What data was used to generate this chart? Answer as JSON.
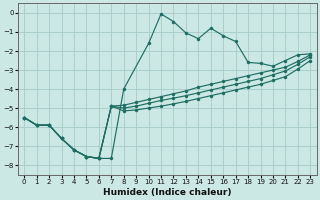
{
  "xlabel": "Humidex (Indice chaleur)",
  "bg_color": "#cce8e4",
  "grid_color": "#aacfcb",
  "line_color": "#1e6e64",
  "xlim": [
    -0.5,
    23.5
  ],
  "ylim": [
    -8.5,
    0.5
  ],
  "xticks": [
    0,
    1,
    2,
    3,
    4,
    5,
    6,
    7,
    8,
    9,
    10,
    11,
    12,
    13,
    14,
    15,
    16,
    17,
    18,
    19,
    20,
    21,
    22,
    23
  ],
  "yticks": [
    0,
    -1,
    -2,
    -3,
    -4,
    -5,
    -6,
    -7,
    -8
  ],
  "main_x": [
    0,
    1,
    2,
    3,
    4,
    5,
    6,
    7,
    8,
    10,
    11,
    12,
    13,
    14,
    15,
    16,
    17,
    18,
    19,
    20,
    21,
    22,
    23
  ],
  "main_y": [
    -5.5,
    -5.9,
    -5.9,
    -6.6,
    -7.2,
    -7.55,
    -7.65,
    -7.65,
    -4.0,
    -1.6,
    -0.05,
    -0.45,
    -1.05,
    -1.35,
    -0.8,
    -1.2,
    -1.5,
    -2.6,
    -2.65,
    -2.8,
    -2.5,
    -2.2,
    -2.15
  ],
  "diag1_x": [
    0,
    1,
    2,
    3,
    4,
    5,
    6,
    7,
    8,
    9,
    10,
    11,
    12,
    13,
    14,
    15,
    16,
    17,
    18,
    19,
    20,
    21,
    22,
    23
  ],
  "diag1_y": [
    -5.5,
    -5.9,
    -5.9,
    -6.6,
    -7.2,
    -7.55,
    -7.65,
    -4.9,
    -4.85,
    -4.7,
    -4.55,
    -4.4,
    -4.25,
    -4.1,
    -3.9,
    -3.75,
    -3.6,
    -3.45,
    -3.3,
    -3.15,
    -3.0,
    -2.85,
    -2.55,
    -2.2
  ],
  "diag2_x": [
    0,
    1,
    2,
    3,
    4,
    5,
    6,
    7,
    8,
    9,
    10,
    11,
    12,
    13,
    14,
    15,
    16,
    17,
    18,
    19,
    20,
    21,
    22,
    23
  ],
  "diag2_y": [
    -5.5,
    -5.9,
    -5.9,
    -6.6,
    -7.2,
    -7.55,
    -7.65,
    -4.9,
    -5.0,
    -4.9,
    -4.75,
    -4.6,
    -4.48,
    -4.35,
    -4.2,
    -4.05,
    -3.9,
    -3.75,
    -3.6,
    -3.45,
    -3.25,
    -3.05,
    -2.7,
    -2.3
  ],
  "diag3_x": [
    0,
    1,
    2,
    3,
    4,
    5,
    6,
    7,
    8,
    9,
    10,
    11,
    12,
    13,
    14,
    15,
    16,
    17,
    18,
    19,
    20,
    21,
    22,
    23
  ],
  "diag3_y": [
    -5.5,
    -5.9,
    -5.9,
    -6.6,
    -7.2,
    -7.55,
    -7.65,
    -4.9,
    -5.15,
    -5.1,
    -5.0,
    -4.9,
    -4.78,
    -4.65,
    -4.5,
    -4.35,
    -4.2,
    -4.05,
    -3.9,
    -3.75,
    -3.55,
    -3.35,
    -2.95,
    -2.5
  ]
}
